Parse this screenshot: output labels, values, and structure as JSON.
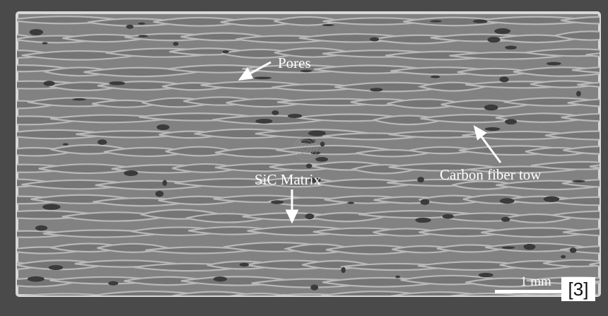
{
  "annotations": {
    "pores": "Pores",
    "sic_matrix": "SiC Matrix",
    "carbon_fiber_tow": "Carbon fiber tow"
  },
  "scale_bar": {
    "label": "1 mm"
  },
  "reference": "[3]",
  "colors": {
    "background": "#4a4a4a",
    "sample": "#7c7c7c",
    "tow": "#6e6e6e",
    "matrix": "#b8b8b8",
    "pore": "#2e2e2e",
    "annotation": "#ffffff"
  }
}
